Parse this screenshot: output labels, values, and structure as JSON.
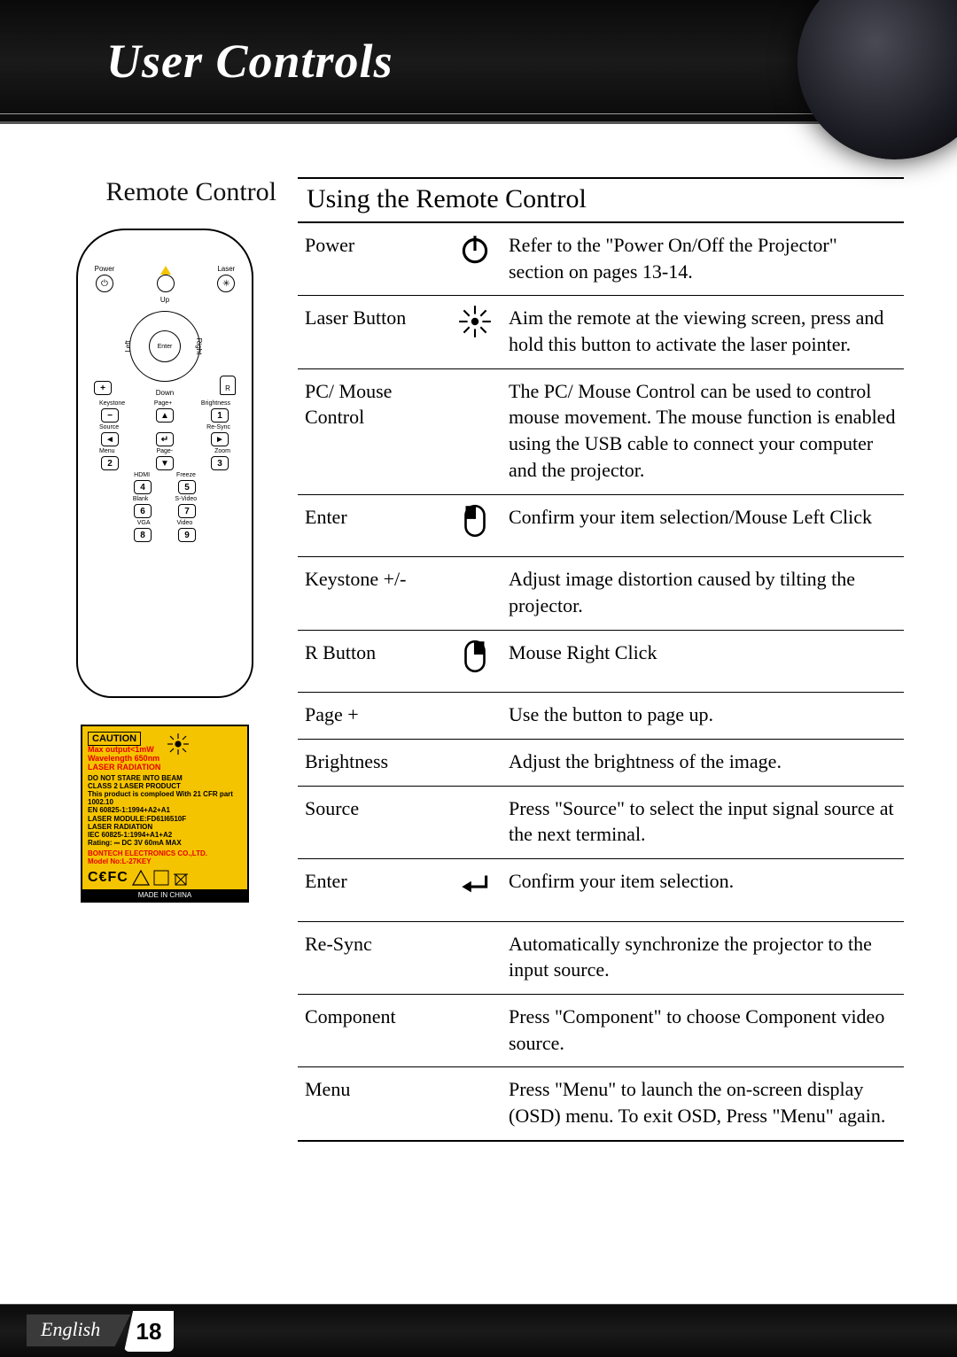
{
  "header": {
    "title": "User Controls"
  },
  "left": {
    "heading": "Remote Control",
    "remote": {
      "power": "Power",
      "laser": "Laser",
      "up": "Up",
      "down": "Down",
      "left": "Left",
      "right": "Right",
      "enter": "Enter",
      "plus": "+",
      "r": "R",
      "keystone": "Keystone",
      "pageplus": "Page+",
      "brightness": "Brightness",
      "minus": "−",
      "one": "1",
      "source": "Source",
      "resync": "Re-Sync",
      "left_arrow": "◄",
      "enter_arrow": "↵",
      "right_arrow": "►",
      "menu": "Menu",
      "pageminus": "Page-",
      "zoom": "Zoom",
      "two": "2",
      "down_arrow": "▼",
      "three": "3",
      "hdmi": "HDMI",
      "freeze": "Freeze",
      "four": "4",
      "five": "5",
      "blank": "Blank",
      "svideo": "S-Video",
      "six": "6",
      "seven": "7",
      "vga": "VGA",
      "video": "Video",
      "eight": "8",
      "nine": "9"
    },
    "caution": {
      "title": "CAUTION",
      "red": "Max output<1mW\nWavelength 650nm\nLASER RADIATION",
      "body": "DO NOT STARE INTO BEAM\nCLASS 2 LASER PRODUCT\nThis product is comploed With 21 CFR part 1002.10\nEN 60825-1:1994+A2+A1\nLASER MODULE:FD61I6510F\nLASER RADIATION\nIEC 60825-1:1994+A1+A2\nRating: ⎓ DC 3V 60mA MAX",
      "company": "BONTECH ELECTRONICS CO.,LTD.\nModel No:L-27KEY",
      "ce": "C€FC",
      "made": "MADE IN CHINA"
    }
  },
  "right": {
    "section": "Using the Remote Control",
    "rows": [
      {
        "name": "Power",
        "icon": "power",
        "desc": "Refer to the \"Power On/Off the Projector\" section on pages 13-14."
      },
      {
        "name": "Laser Button",
        "icon": "laser",
        "desc": "Aim the remote at the viewing screen, press and hold this button to activate the laser pointer."
      },
      {
        "name": "PC/ Mouse Control",
        "icon": "",
        "desc": "The PC/ Mouse Control can be used to control mouse movement. The mouse function is enabled using the USB cable to connect your computer and the projector."
      },
      {
        "name": "Enter",
        "icon": "mouseL",
        "desc": "Confirm your item selection/Mouse Left Click"
      },
      {
        "name": "Keystone +/-",
        "icon": "",
        "desc": "Adjust image distortion caused by tilting the projector."
      },
      {
        "name": "R Button",
        "icon": "mouseR",
        "desc": "Mouse Right Click"
      },
      {
        "name": "Page +",
        "icon": "",
        "desc": "Use the button to page up."
      },
      {
        "name": "Brightness",
        "icon": "",
        "desc": "Adjust the brightness of the image."
      },
      {
        "name": "Source",
        "icon": "",
        "desc": "Press \"Source\" to select the input signal source at the next terminal."
      },
      {
        "name": "Enter",
        "icon": "enter",
        "desc": "Confirm your item selection."
      },
      {
        "name": "Re-Sync",
        "icon": "",
        "desc": "Automatically synchronize the projector to the input source."
      },
      {
        "name": "Component",
        "icon": "",
        "desc": "Press \"Component\" to choose Component video source."
      },
      {
        "name": "Menu",
        "icon": "",
        "desc": "Press \"Menu\" to launch the on-screen display (OSD) menu. To exit OSD, Press \"Menu\" again."
      }
    ]
  },
  "footer": {
    "language": "English",
    "page": "18"
  }
}
